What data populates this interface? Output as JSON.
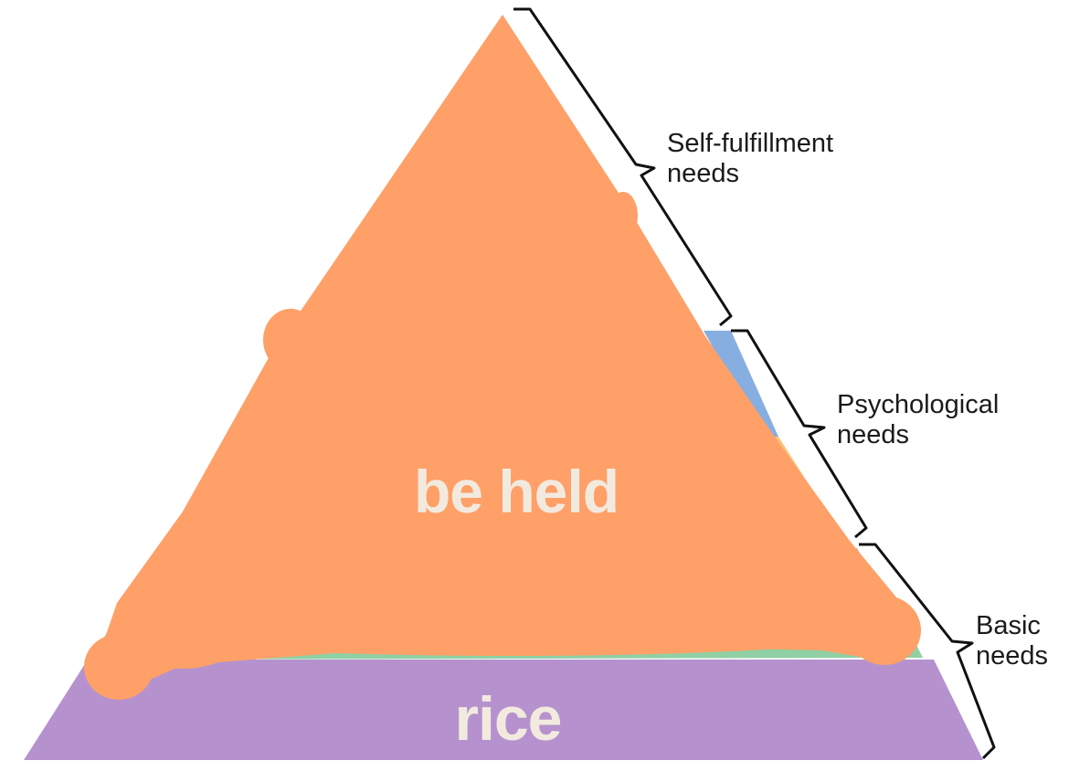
{
  "overlay": {
    "top_text": "be held",
    "bottom_text": "rice"
  },
  "brackets": [
    {
      "line1": "Self-fulfillment",
      "line2": "needs"
    },
    {
      "line1": "Psychological",
      "line2": "needs"
    },
    {
      "line1": "Basic",
      "line2": "needs"
    }
  ],
  "colors": {
    "scribble_orange": "#fea068",
    "base_purple": "#b592ce",
    "edge_green": "#8fd0a4",
    "edge_blue": "#86aee0",
    "edge_yellow": "#f8c27a",
    "overlay_text": "#f3eadf",
    "bracket_line": "#111111"
  }
}
